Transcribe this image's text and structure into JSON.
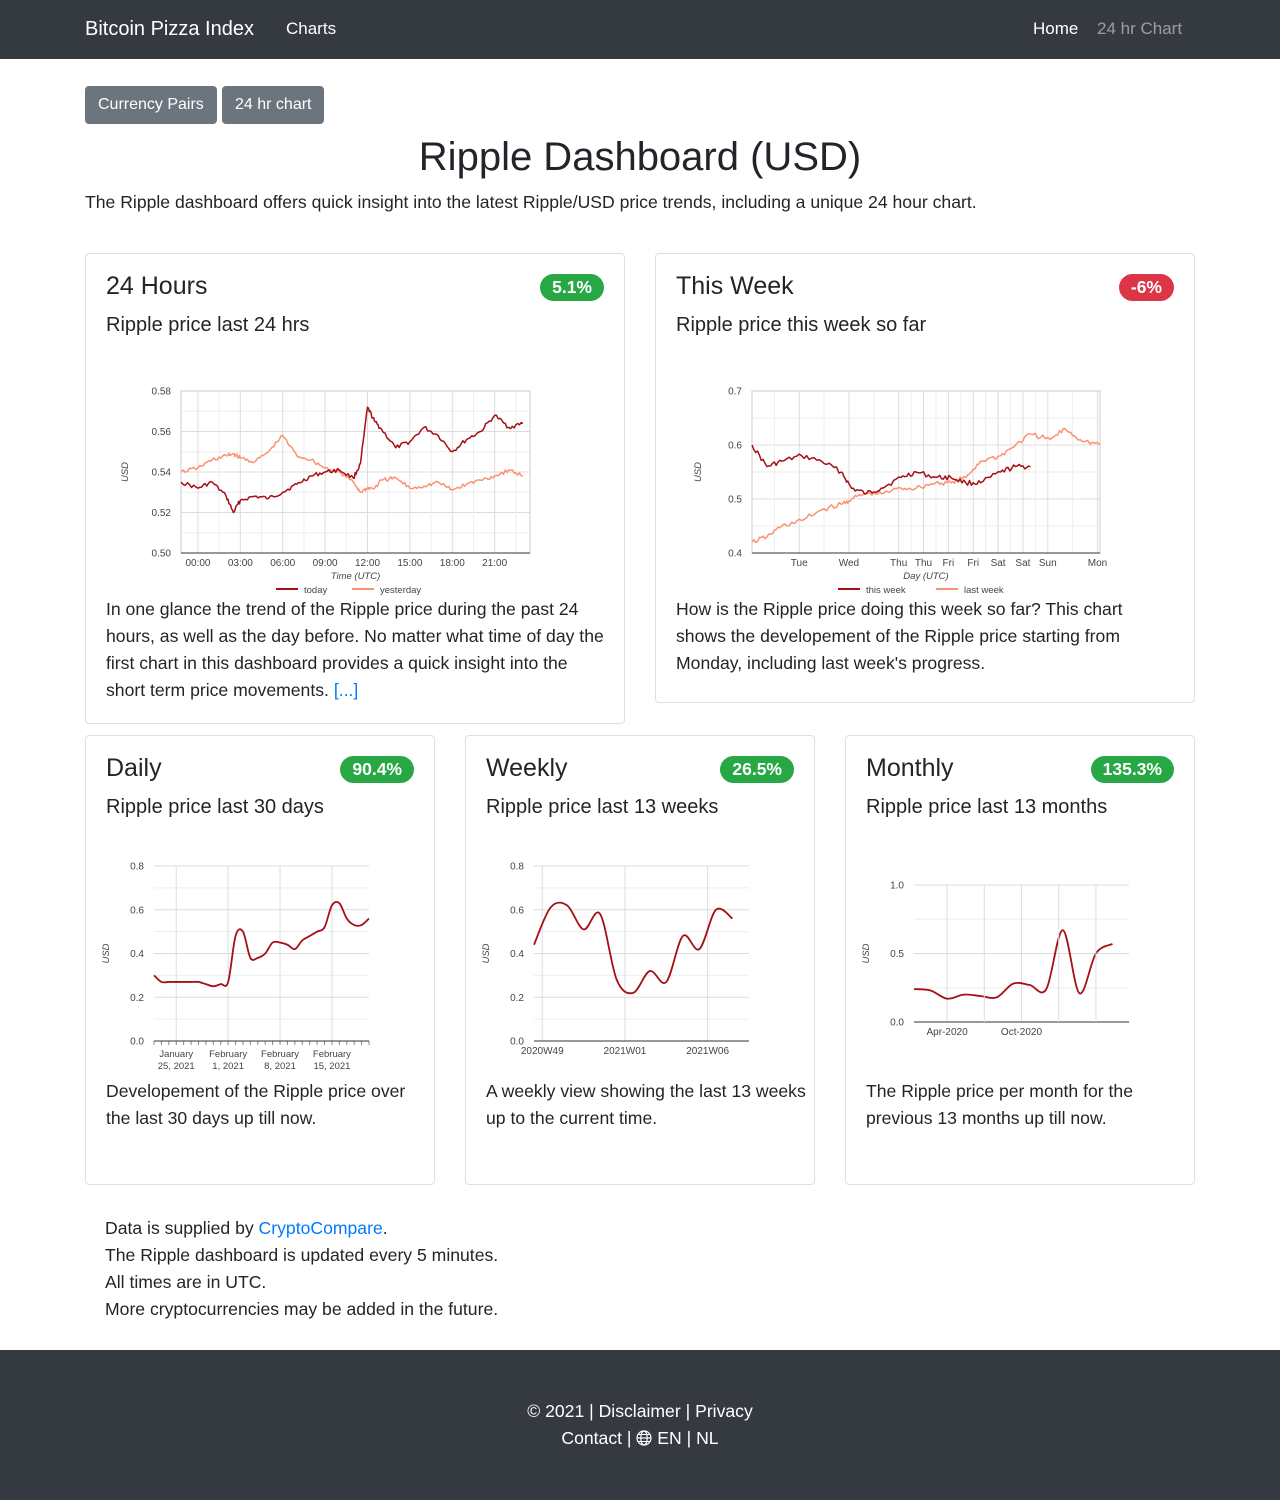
{
  "nav": {
    "brand": "Bitcoin Pizza Index",
    "charts": "Charts",
    "home": "Home",
    "chart24": "24 hr Chart"
  },
  "buttons": {
    "pairs": "Currency Pairs",
    "chart": "24 hr chart"
  },
  "header": {
    "title": "Ripple Dashboard (USD)",
    "lead": "The Ripple dashboard offers quick insight into the latest Ripple/USD price trends, including a unique 24 hour chart."
  },
  "cards": {
    "h24": {
      "title": "24 Hours",
      "badge": "5.1%",
      "subtitle": "Ripple price last 24 hrs",
      "text": "In one glance the trend of the Ripple price during the past 24 hours, as well as the day before. No matter what time of day the first chart in this dashboard provides a quick insight into the short term price movements.",
      "more": "[...]"
    },
    "week": {
      "title": "This Week",
      "badge": "-6%",
      "subtitle": "Ripple price this week so far",
      "text": "How is the Ripple price doing this week so far? This chart shows the developement of the Ripple price starting from Monday, including last week's progress."
    },
    "daily": {
      "title": "Daily",
      "badge": "90.4%",
      "subtitle": "Ripple price last 30 days",
      "text": "Developement of the Ripple price over the last 30 days up till now."
    },
    "weekly": {
      "title": "Weekly",
      "badge": "26.5%",
      "subtitle": "Ripple price last 13 weeks",
      "text": "A weekly view showing the last 13 weeks up to the current time."
    },
    "monthly": {
      "title": "Monthly",
      "badge": "135.3%",
      "subtitle": "Ripple price last 13 months",
      "text": "The Ripple price per month for the previous 13 months up till now."
    }
  },
  "info": {
    "l1a": "Data is supplied by ",
    "l1link": "CryptoCompare",
    "l1b": ".",
    "l2": "The Ripple dashboard is updated every 5 minutes.",
    "l3": "All times are in UTC.",
    "l4": "More cryptocurrencies may be added in the future."
  },
  "footer": {
    "copy": "© 2021",
    "disclaimer": "Disclaimer",
    "privacy": "Privacy",
    "contact": "Contact",
    "en": "EN",
    "nl": "NL",
    "sep": "|"
  },
  "colors": {
    "dark": "#343a40",
    "today": "#a50f15",
    "yesterday": "#fc9272",
    "green": "#28a745",
    "red": "#dc3545",
    "link": "#007bff"
  },
  "chart_data": [
    {
      "id": "h24",
      "type": "line",
      "xlabel": "Time (UTC)",
      "ylabel": "USD",
      "ylim": [
        0.5,
        0.58
      ],
      "yticks": [
        "0.50",
        "0.52",
        "0.54",
        "0.56",
        "0.58"
      ],
      "xticks": [
        "00:00",
        "03:00",
        "06:00",
        "09:00",
        "12:00",
        "15:00",
        "18:00",
        "21:00"
      ],
      "x": [
        -1.2,
        0,
        1,
        2,
        2.5,
        3,
        4,
        5,
        6,
        7,
        8,
        9,
        10,
        11,
        11.5,
        12,
        12.5,
        13,
        14,
        15,
        16,
        17,
        18,
        19,
        20,
        21,
        22,
        23
      ],
      "series": [
        {
          "name": "today",
          "values": [
            0.535,
            0.532,
            0.535,
            0.528,
            0.52,
            0.526,
            0.528,
            0.527,
            0.53,
            0.534,
            0.538,
            0.54,
            0.541,
            0.537,
            0.544,
            0.572,
            0.565,
            0.561,
            0.552,
            0.555,
            0.562,
            0.558,
            0.55,
            0.556,
            0.56,
            0.568,
            0.562,
            0.564
          ]
        },
        {
          "name": "yesterday",
          "values": [
            0.54,
            0.542,
            0.546,
            0.548,
            0.549,
            0.547,
            0.545,
            0.55,
            0.558,
            0.548,
            0.546,
            0.542,
            0.54,
            0.535,
            0.53,
            0.532,
            0.532,
            0.536,
            0.537,
            0.532,
            0.533,
            0.535,
            0.531,
            0.534,
            0.536,
            0.538,
            0.541,
            0.538
          ]
        }
      ],
      "legend_position": "bottom"
    },
    {
      "id": "week",
      "type": "line",
      "xlabel": "Day (UTC)",
      "ylabel": "USD",
      "ylim": [
        0.4,
        0.7
      ],
      "yticks": [
        "0.4",
        "0.5",
        "0.6",
        "0.7"
      ],
      "xticks": [
        "Tue",
        "Wed",
        "Thu",
        "Thu",
        "Fri",
        "Fri",
        "Sat",
        "Sat",
        "Sun",
        "Mon"
      ],
      "x": [
        0,
        0.3,
        0.6,
        1,
        1.4,
        1.8,
        2,
        2.3,
        2.6,
        3,
        3.3,
        3.7,
        4,
        4.3,
        4.6,
        5,
        5.3,
        5.6,
        6,
        6.3,
        6.6,
        7
      ],
      "series": [
        {
          "name": "this week",
          "values": [
            0.6,
            0.56,
            0.57,
            0.58,
            0.57,
            0.55,
            0.52,
            0.51,
            0.52,
            0.54,
            0.55,
            0.54,
            0.54,
            0.53,
            0.53,
            0.55,
            0.56,
            0.56,
            null,
            null,
            null,
            null
          ]
        },
        {
          "name": "last week",
          "values": [
            0.42,
            0.43,
            0.45,
            0.46,
            0.48,
            0.49,
            0.5,
            0.51,
            0.51,
            0.52,
            0.52,
            0.53,
            0.53,
            0.54,
            0.57,
            0.58,
            0.6,
            0.62,
            0.61,
            0.63,
            0.61,
            0.6
          ]
        }
      ],
      "legend_position": "bottom"
    },
    {
      "id": "daily",
      "type": "line",
      "ylabel": "USD",
      "ylim": [
        0,
        0.8
      ],
      "yticks": [
        "0.0",
        "0.2",
        "0.4",
        "0.6",
        "0.8"
      ],
      "xticks": [
        "January 25, 2021",
        "February 1, 2021",
        "February 8, 2021",
        "February 15, 2021"
      ],
      "x": [
        0,
        1,
        2,
        3,
        4,
        5,
        6,
        7,
        8,
        9,
        10,
        11,
        12,
        13,
        14,
        15,
        16,
        17,
        18,
        19,
        20,
        21,
        22,
        23,
        24,
        25,
        26,
        27,
        28,
        29
      ],
      "series": [
        {
          "name": "",
          "values": [
            0.3,
            0.27,
            0.27,
            0.27,
            0.27,
            0.27,
            0.27,
            0.26,
            0.25,
            0.26,
            0.27,
            0.48,
            0.5,
            0.38,
            0.38,
            0.4,
            0.45,
            0.45,
            0.44,
            0.42,
            0.46,
            0.48,
            0.5,
            0.52,
            0.62,
            0.63,
            0.56,
            0.53,
            0.53,
            0.56
          ]
        }
      ]
    },
    {
      "id": "weekly",
      "type": "line",
      "ylabel": "USD",
      "ylim": [
        0,
        0.8
      ],
      "yticks": [
        "0.0",
        "0.2",
        "0.4",
        "0.6",
        "0.8"
      ],
      "xticks": [
        "2020W49",
        "2021W01",
        "2021W06"
      ],
      "x": [
        0,
        1,
        2,
        3,
        4,
        5,
        6,
        7,
        8,
        9,
        10,
        11,
        12
      ],
      "series": [
        {
          "name": "",
          "values": [
            0.44,
            0.61,
            0.62,
            0.51,
            0.58,
            0.28,
            0.22,
            0.32,
            0.27,
            0.48,
            0.42,
            0.6,
            0.56
          ]
        }
      ]
    },
    {
      "id": "monthly",
      "type": "line",
      "ylabel": "USD",
      "ylim": [
        0,
        1.0
      ],
      "yticks": [
        "0.0",
        "0.5",
        "1.0"
      ],
      "xticks": [
        "Apr-2020",
        "Oct-2020"
      ],
      "x": [
        0,
        1,
        2,
        3,
        4,
        5,
        6,
        7,
        8,
        9,
        10,
        11,
        12
      ],
      "series": [
        {
          "name": "",
          "values": [
            0.24,
            0.23,
            0.17,
            0.2,
            0.19,
            0.18,
            0.28,
            0.27,
            0.24,
            0.67,
            0.21,
            0.5,
            0.57
          ]
        }
      ]
    }
  ]
}
